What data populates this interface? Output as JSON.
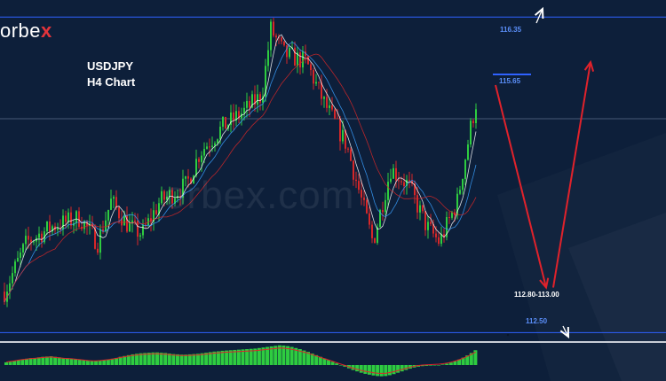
{
  "logo": {
    "text": "orbe",
    "x": "x"
  },
  "watermark": "orbex.com",
  "title": {
    "line1": "USDJPY",
    "line2": "H4 Chart"
  },
  "levels": {
    "top": "116.35",
    "target": "115.65",
    "bottom": "112.50",
    "zone": "112.80-113.00"
  },
  "colors": {
    "background": "#0d1f3a",
    "bull": "#2ecc40",
    "bear": "#d62728",
    "level_line": "#2f62ff",
    "arrow": "#e0222b",
    "histogram": "#2ecc40"
  },
  "chart_data": {
    "type": "candlestick",
    "symbol": "USDJPY",
    "timeframe": "H4",
    "ylim": [
      112.45,
      116.45
    ],
    "levels": [
      116.35,
      115.65,
      112.5
    ],
    "target_zone": [
      112.8,
      113.0
    ],
    "path": [
      [
        5,
        113.0
      ],
      [
        30,
        113.6
      ],
      [
        60,
        113.8
      ],
      [
        90,
        113.9
      ],
      [
        110,
        113.6
      ],
      [
        125,
        114.1
      ],
      [
        145,
        113.8
      ],
      [
        160,
        113.7
      ],
      [
        180,
        114.1
      ],
      [
        210,
        114.3
      ],
      [
        225,
        114.7
      ],
      [
        250,
        115.0
      ],
      [
        275,
        115.2
      ],
      [
        295,
        115.4
      ],
      [
        305,
        116.2
      ],
      [
        320,
        115.9
      ],
      [
        345,
        115.8
      ],
      [
        365,
        115.3
      ],
      [
        390,
        114.8
      ],
      [
        410,
        114.0
      ],
      [
        420,
        113.6
      ],
      [
        440,
        114.5
      ],
      [
        460,
        114.3
      ],
      [
        480,
        113.8
      ],
      [
        495,
        113.6
      ],
      [
        515,
        114.1
      ],
      [
        530,
        115.0
      ],
      [
        540,
        115.5
      ]
    ],
    "forecast": [
      [
        558,
        115.65
      ],
      [
        615,
        113.05
      ],
      [
        665,
        115.8
      ]
    ],
    "histogram_series": [
      1.0,
      1.2,
      1.5,
      1.8,
      2.1,
      2.3,
      2.5,
      2.6,
      2.8,
      3.0,
      3.1,
      3.2,
      3.0,
      2.8,
      2.6,
      2.5,
      2.4,
      2.2,
      2.0,
      1.8,
      1.6,
      1.5,
      1.5,
      1.6,
      1.8,
      2.0,
      2.3,
      2.6,
      3.0,
      3.3,
      3.6,
      3.9,
      4.1,
      4.3,
      4.4,
      4.5,
      4.6,
      4.6,
      4.5,
      4.4,
      4.2,
      4.0,
      3.9,
      3.8,
      3.8,
      3.9,
      4.0,
      4.1,
      4.3,
      4.5,
      4.7,
      4.9,
      5.0,
      5.2,
      5.3,
      5.4,
      5.5,
      5.6,
      5.7,
      5.8,
      5.9,
      6.0,
      6.2,
      6.4,
      6.6,
      6.8,
      7.0,
      7.2,
      7.1,
      6.9,
      6.6,
      6.2,
      5.8,
      5.3,
      4.8,
      4.2,
      3.6,
      3.0,
      2.4,
      1.8,
      1.2,
      0.6,
      0.0,
      -0.6,
      -1.2,
      -1.8,
      -2.3,
      -2.8,
      -3.2,
      -3.5,
      -3.8,
      -4.0,
      -4.1,
      -4.0,
      -3.7,
      -3.3,
      -2.8,
      -2.3,
      -1.8,
      -1.3,
      -0.9,
      -0.6,
      -0.4,
      -0.3,
      -0.2,
      -0.1,
      0.0,
      0.2,
      0.5,
      0.9,
      1.4,
      2.0,
      2.7,
      3.5,
      4.4,
      5.4
    ]
  }
}
